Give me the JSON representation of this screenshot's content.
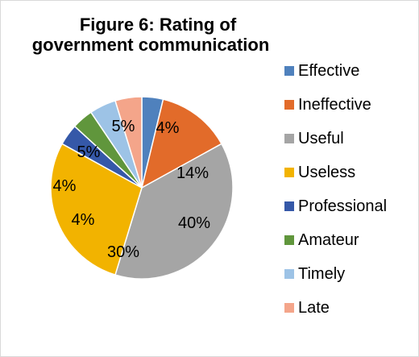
{
  "chart_data": {
    "type": "pie",
    "title_lines": [
      "Figure 6: Rating of",
      "government communication"
    ],
    "categories": [
      "Effective",
      "Ineffective",
      "Useful",
      "Useless",
      "Professional",
      "Amateur",
      "Timely",
      "Late"
    ],
    "values": [
      4,
      14,
      40,
      30,
      4,
      4,
      5,
      5
    ],
    "data_labels": [
      "4%",
      "14%",
      "40%",
      "30%",
      "4%",
      "4%",
      "5%",
      "5%"
    ],
    "colors": [
      "#4F81BD",
      "#E26B2A",
      "#A5A5A5",
      "#F2B300",
      "#3558A8",
      "#60963C",
      "#9DC3E6",
      "#F4A58A"
    ],
    "legend_position": "right"
  }
}
